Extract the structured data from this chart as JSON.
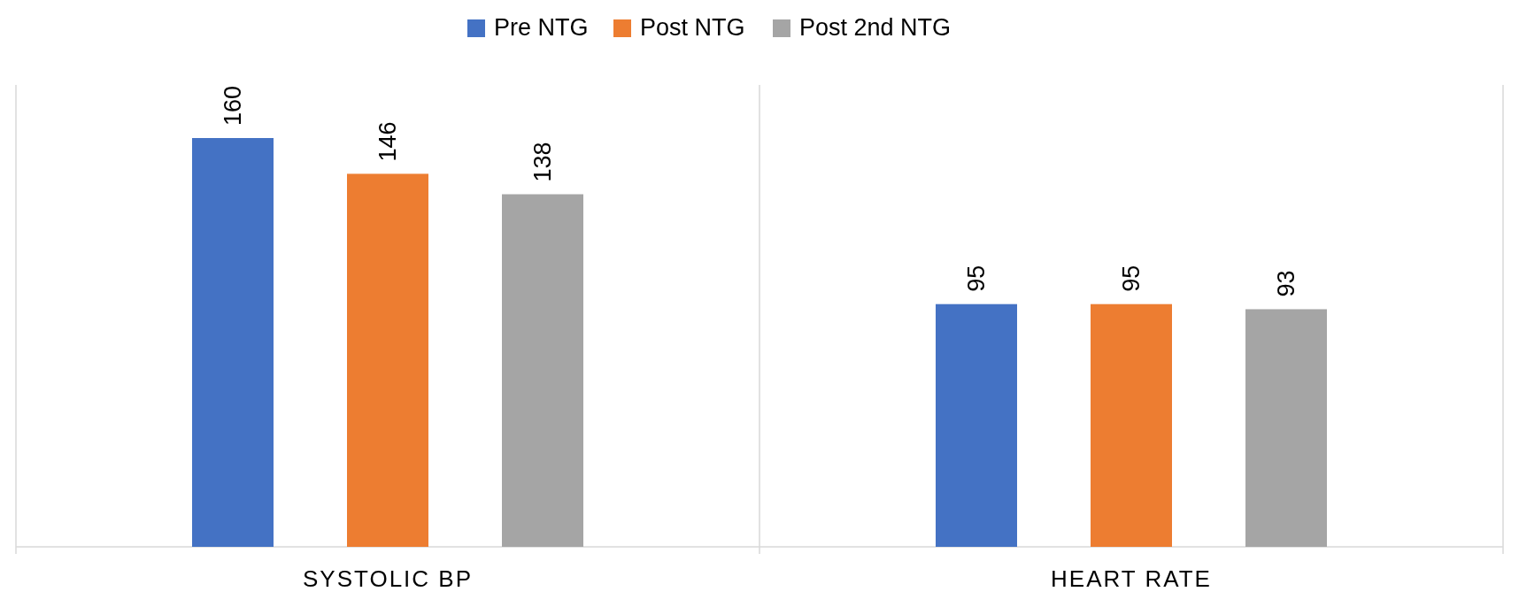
{
  "chart_data": {
    "type": "bar",
    "categories": [
      "SYSTOLIC BP",
      "HEART RATE"
    ],
    "series": [
      {
        "name": "Pre NTG",
        "color": "#4472c4",
        "values": [
          160,
          95
        ]
      },
      {
        "name": "Post NTG",
        "color": "#ed7d31",
        "values": [
          146,
          95
        ]
      },
      {
        "name": "Post 2nd NTG",
        "color": "#a5a5a5",
        "values": [
          138,
          93
        ]
      }
    ],
    "data_labels": true,
    "legend": "top"
  }
}
